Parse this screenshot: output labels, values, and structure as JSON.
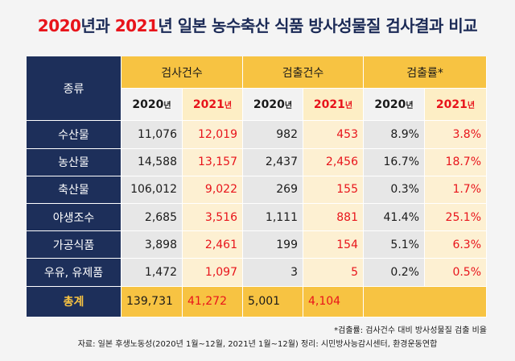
{
  "title": {
    "part1": "2020",
    "part2": "년과 ",
    "part3": "2021",
    "part4": "년 일본 농수축산 식품 방사성물질 검사결과 비교"
  },
  "header": {
    "category_label": "종류",
    "groups": [
      "검사건수",
      "검출건수",
      "검출률*"
    ],
    "year_2020": "2020",
    "year_2021": "2021",
    "year_suffix": "년"
  },
  "rows": [
    {
      "category": "수산물",
      "tests_2020": "11,076",
      "tests_2021": "12,019",
      "det_2020": "982",
      "det_2021": "453",
      "rate_2020": "8.9%",
      "rate_2021": "3.8%"
    },
    {
      "category": "농산물",
      "tests_2020": "14,588",
      "tests_2021": "13,157",
      "det_2020": "2,437",
      "det_2021": "2,456",
      "rate_2020": "16.7%",
      "rate_2021": "18.7%"
    },
    {
      "category": "축산물",
      "tests_2020": "106,012",
      "tests_2021": "9,022",
      "det_2020": "269",
      "det_2021": "155",
      "rate_2020": "0.3%",
      "rate_2021": "1.7%"
    },
    {
      "category": "야생조수",
      "tests_2020": "2,685",
      "tests_2021": "3,516",
      "det_2020": "1,111",
      "det_2021": "881",
      "rate_2020": "41.4%",
      "rate_2021": "25.1%"
    },
    {
      "category": "가공식품",
      "tests_2020": "3,898",
      "tests_2021": "2,461",
      "det_2020": "199",
      "det_2021": "154",
      "rate_2020": "5.1%",
      "rate_2021": "6.3%"
    },
    {
      "category": "우유, 유제품",
      "tests_2020": "1,472",
      "tests_2021": "1,097",
      "det_2020": "3",
      "det_2021": "5",
      "rate_2020": "0.2%",
      "rate_2021": "0.5%"
    }
  ],
  "total": {
    "label": "총계",
    "tests_2020": "139,731",
    "tests_2021": "41,272",
    "det_2020": "5,001",
    "det_2021": "4,104"
  },
  "footnote": "*검출률: 검사건수 대비 방사성물질 검출 비율",
  "source": "자료: 일본 후생노동성(2020년 1월~12월, 2021년 1월~12월) 정리: 시민방사능감시센터, 환경운동연합",
  "colors": {
    "navy": "#1d2f5a",
    "gold": "#f7c342",
    "red": "#e8141b"
  }
}
